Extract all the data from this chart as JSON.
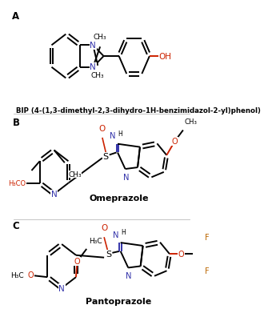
{
  "panel_a_label": "A",
  "panel_b_label": "B",
  "panel_c_label": "C",
  "bip_caption": "BIP (4-(1,3-dimethyl-2,3-dihydro-1H-benzimidazol-2-yl)phenol)",
  "omeprazole_label": "Omeprazole",
  "pantoprazole_label": "Pantoprazole",
  "bg_color": "#ffffff",
  "bk": "#000000",
  "bl": "#3333aa",
  "rd": "#cc2200",
  "fl": "#bb6600"
}
